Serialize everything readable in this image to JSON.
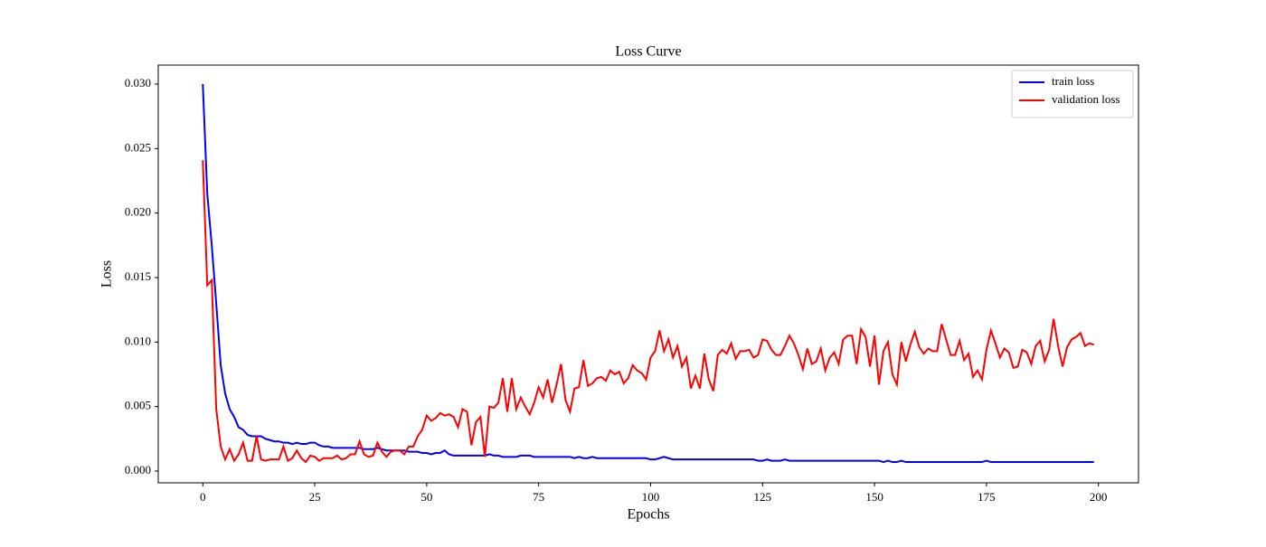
{
  "chart_data": {
    "type": "line",
    "title": "Loss Curve",
    "x_label": "Epochs",
    "y_label": "Loss",
    "x": [
      0,
      1,
      2,
      3,
      4,
      5,
      6,
      7,
      8,
      9,
      10,
      11,
      12,
      13,
      14,
      15,
      16,
      17,
      18,
      19,
      20,
      21,
      22,
      23,
      24,
      25,
      26,
      27,
      28,
      29,
      30,
      31,
      32,
      33,
      34,
      35,
      36,
      37,
      38,
      39,
      40,
      41,
      42,
      43,
      44,
      45,
      46,
      47,
      48,
      49,
      50,
      51,
      52,
      53,
      54,
      55,
      56,
      57,
      58,
      59,
      60,
      61,
      62,
      63,
      64,
      65,
      66,
      67,
      68,
      69,
      70,
      71,
      72,
      73,
      74,
      75,
      76,
      77,
      78,
      79,
      80,
      81,
      82,
      83,
      84,
      85,
      86,
      87,
      88,
      89,
      90,
      91,
      92,
      93,
      94,
      95,
      96,
      97,
      98,
      99,
      100,
      101,
      102,
      103,
      104,
      105,
      106,
      107,
      108,
      109,
      110,
      111,
      112,
      113,
      114,
      115,
      116,
      117,
      118,
      119,
      120,
      121,
      122,
      123,
      124,
      125,
      126,
      127,
      128,
      129,
      130,
      131,
      132,
      133,
      134,
      135,
      136,
      137,
      138,
      139,
      140,
      141,
      142,
      143,
      144,
      145,
      146,
      147,
      148,
      149,
      150,
      151,
      152,
      153,
      154,
      155,
      156,
      157,
      158,
      159,
      160,
      161,
      162,
      163,
      164,
      165,
      166,
      167,
      168,
      169,
      170,
      171,
      172,
      173,
      174,
      175,
      176,
      177,
      178,
      179,
      180,
      181,
      182,
      183,
      184,
      185,
      186,
      187,
      188,
      189,
      190,
      191,
      192,
      193,
      194,
      195,
      196,
      197,
      198,
      199
    ],
    "series": [
      {
        "name": "train loss",
        "color": "#0000ff",
        "values": [
          0.03,
          0.0215,
          0.0175,
          0.013,
          0.0082,
          0.006,
          0.0048,
          0.0042,
          0.0034,
          0.0032,
          0.0028,
          0.0027,
          0.0027,
          0.0027,
          0.0025,
          0.0024,
          0.0023,
          0.0023,
          0.0022,
          0.0022,
          0.0021,
          0.0022,
          0.0021,
          0.0021,
          0.0022,
          0.0022,
          0.002,
          0.0019,
          0.0019,
          0.0018,
          0.0018,
          0.0018,
          0.0018,
          0.0018,
          0.0018,
          0.0018,
          0.0017,
          0.0017,
          0.0017,
          0.0018,
          0.0017,
          0.0016,
          0.0016,
          0.0016,
          0.0016,
          0.0016,
          0.0015,
          0.0015,
          0.0015,
          0.0014,
          0.0014,
          0.0013,
          0.0014,
          0.0014,
          0.0016,
          0.0013,
          0.0012,
          0.0012,
          0.0012,
          0.0012,
          0.0012,
          0.0012,
          0.0012,
          0.0012,
          0.0013,
          0.0012,
          0.0012,
          0.0011,
          0.0011,
          0.0011,
          0.0011,
          0.0012,
          0.0012,
          0.0012,
          0.0011,
          0.0011,
          0.0011,
          0.0011,
          0.0011,
          0.0011,
          0.0011,
          0.0011,
          0.0011,
          0.001,
          0.0011,
          0.001,
          0.001,
          0.0011,
          0.001,
          0.001,
          0.001,
          0.001,
          0.001,
          0.001,
          0.001,
          0.001,
          0.001,
          0.001,
          0.001,
          0.001,
          0.0009,
          0.0009,
          0.001,
          0.0011,
          0.001,
          0.0009,
          0.0009,
          0.0009,
          0.0009,
          0.0009,
          0.0009,
          0.0009,
          0.0009,
          0.0009,
          0.0009,
          0.0009,
          0.0009,
          0.0009,
          0.0009,
          0.0009,
          0.0009,
          0.0009,
          0.0009,
          0.0009,
          0.0008,
          0.0008,
          0.0009,
          0.0008,
          0.0008,
          0.0008,
          0.0009,
          0.0008,
          0.0008,
          0.0008,
          0.0008,
          0.0008,
          0.0008,
          0.0008,
          0.0008,
          0.0008,
          0.0008,
          0.0008,
          0.0008,
          0.0008,
          0.0008,
          0.0008,
          0.0008,
          0.0008,
          0.0008,
          0.0008,
          0.0008,
          0.0008,
          0.0007,
          0.0008,
          0.0007,
          0.0007,
          0.0008,
          0.0007,
          0.0007,
          0.0007,
          0.0007,
          0.0007,
          0.0007,
          0.0007,
          0.0007,
          0.0007,
          0.0007,
          0.0007,
          0.0007,
          0.0007,
          0.0007,
          0.0007,
          0.0007,
          0.0007,
          0.0007,
          0.0008,
          0.0007,
          0.0007,
          0.0007,
          0.0007,
          0.0007,
          0.0007,
          0.0007,
          0.0007,
          0.0007,
          0.0007,
          0.0007,
          0.0007,
          0.0007,
          0.0007,
          0.0007,
          0.0007,
          0.0007,
          0.0007,
          0.0007,
          0.0007,
          0.0007,
          0.0007,
          0.0007,
          0.0007
        ]
      },
      {
        "name": "validation loss",
        "color": "#ff0000",
        "values": [
          0.0241,
          0.0144,
          0.0148,
          0.0048,
          0.0019,
          0.0009,
          0.0017,
          0.0008,
          0.0013,
          0.0022,
          0.0008,
          0.0008,
          0.0027,
          0.0009,
          0.0008,
          0.0009,
          0.0009,
          0.0009,
          0.0019,
          0.0008,
          0.001,
          0.0016,
          0.001,
          0.0007,
          0.0012,
          0.0011,
          0.0008,
          0.001,
          0.001,
          0.001,
          0.0012,
          0.0009,
          0.001,
          0.0013,
          0.0013,
          0.0023,
          0.0013,
          0.0011,
          0.0012,
          0.0022,
          0.0015,
          0.0011,
          0.0015,
          0.0016,
          0.0016,
          0.0013,
          0.0019,
          0.0019,
          0.0027,
          0.0032,
          0.0043,
          0.0039,
          0.0041,
          0.0045,
          0.0043,
          0.0044,
          0.0042,
          0.0034,
          0.0048,
          0.0046,
          0.002,
          0.0038,
          0.0042,
          0.0011,
          0.005,
          0.0049,
          0.0053,
          0.0072,
          0.0046,
          0.0072,
          0.0048,
          0.0057,
          0.005,
          0.0044,
          0.0053,
          0.0065,
          0.0057,
          0.0071,
          0.0053,
          0.0067,
          0.0083,
          0.0055,
          0.0046,
          0.0064,
          0.0065,
          0.0086,
          0.0066,
          0.0068,
          0.0072,
          0.0073,
          0.007,
          0.0078,
          0.0075,
          0.0077,
          0.0068,
          0.0072,
          0.0082,
          0.0078,
          0.0076,
          0.0071,
          0.0088,
          0.0093,
          0.0109,
          0.0093,
          0.0102,
          0.0088,
          0.0097,
          0.0081,
          0.0088,
          0.0064,
          0.0074,
          0.0064,
          0.0091,
          0.0071,
          0.0062,
          0.009,
          0.0094,
          0.0091,
          0.0099,
          0.0087,
          0.0093,
          0.0093,
          0.0094,
          0.0088,
          0.009,
          0.0102,
          0.0101,
          0.0094,
          0.009,
          0.009,
          0.0097,
          0.0105,
          0.0099,
          0.009,
          0.0079,
          0.0095,
          0.0083,
          0.0085,
          0.0095,
          0.0078,
          0.0088,
          0.0092,
          0.0083,
          0.0102,
          0.0105,
          0.0105,
          0.0083,
          0.011,
          0.0104,
          0.0081,
          0.0105,
          0.0067,
          0.0093,
          0.01,
          0.0075,
          0.0067,
          0.01,
          0.0085,
          0.0098,
          0.0108,
          0.0096,
          0.0091,
          0.0095,
          0.0093,
          0.0093,
          0.0114,
          0.0102,
          0.009,
          0.009,
          0.0101,
          0.0086,
          0.0091,
          0.0073,
          0.0078,
          0.0071,
          0.0094,
          0.0109,
          0.0099,
          0.0088,
          0.0095,
          0.0092,
          0.008,
          0.0081,
          0.0094,
          0.0092,
          0.0083,
          0.0097,
          0.0101,
          0.0085,
          0.0094,
          0.0118,
          0.0097,
          0.0081,
          0.0096,
          0.0102,
          0.0104,
          0.0107,
          0.0097,
          0.0099,
          0.0098
        ]
      }
    ],
    "xlim": [
      -9.95,
      208.95
    ],
    "xticks": [
      0,
      25,
      50,
      75,
      100,
      125,
      150,
      175,
      200
    ],
    "ylim": [
      -0.00091,
      0.03147
    ],
    "yticks": [
      {
        "value": 0,
        "label": "0.000"
      },
      {
        "value": 0.005,
        "label": "0.005"
      },
      {
        "value": 0.01,
        "label": "0.010"
      },
      {
        "value": 0.015,
        "label": "0.015"
      },
      {
        "value": 0.02,
        "label": "0.020"
      },
      {
        "value": 0.025,
        "label": "0.025"
      },
      {
        "value": 0.03,
        "label": "0.030"
      }
    ],
    "legend": "upper right",
    "grid": false
  }
}
